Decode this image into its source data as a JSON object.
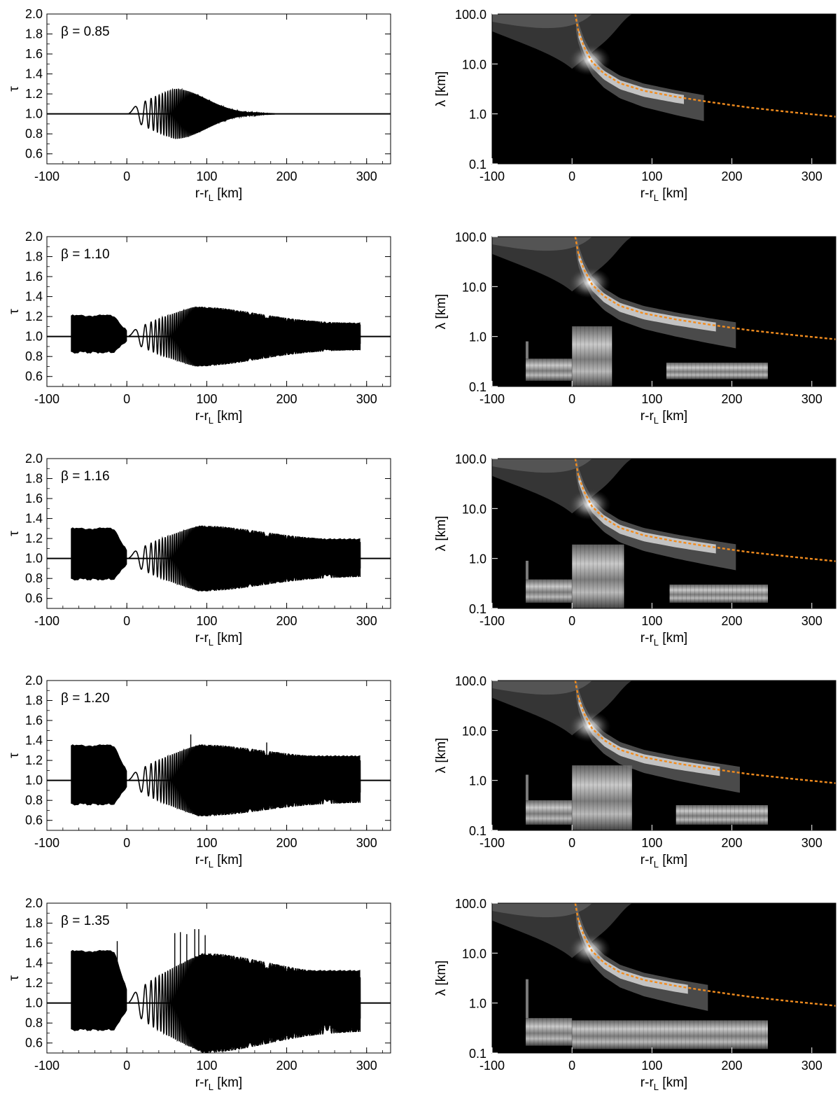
{
  "chart_data": [
    {
      "type": "line",
      "panel": "left",
      "beta_label": "β = 0.85",
      "ylabel": "τ",
      "xlabel": "r-r",
      "xlabel_sub": "L",
      "xlabel_unit": "[km]",
      "xlim": [
        -100,
        330
      ],
      "ylim": [
        0.5,
        2.0
      ],
      "xticks": [
        -100,
        0,
        100,
        200,
        300
      ],
      "xtick_labels": [
        "-100",
        "0",
        "100",
        "200",
        "300"
      ],
      "yticks": [
        0.6,
        0.8,
        1.0,
        1.2,
        1.4,
        1.6,
        1.8,
        2.0
      ],
      "ytick_labels": [
        "0.6",
        "0.8",
        "1.0",
        "1.2",
        "1.4",
        "1.6",
        "1.8",
        "2.0"
      ],
      "baseline": 1.0,
      "band": null,
      "wave": {
        "start": 0,
        "end": 185,
        "peak_x": 60,
        "peak_amp": 0.25,
        "post_amp": 0
      },
      "spikes": []
    },
    {
      "type": "heatmap",
      "panel": "right",
      "ylabel": "λ [km]",
      "xlabel": "r-r",
      "xlabel_sub": "L",
      "xlabel_unit": "[km]",
      "xlim": [
        -100,
        330
      ],
      "ylim": [
        0.1,
        100
      ],
      "yscale": "log",
      "xticks": [
        -100,
        0,
        100,
        200,
        300
      ],
      "xtick_labels": [
        "-100",
        "0",
        "100",
        "200",
        "300"
      ],
      "yticks": [
        0.1,
        1,
        10,
        100
      ],
      "ytick_labels": [
        "0.1",
        "1.0",
        "10.0",
        "100.0"
      ],
      "ridge_end": 165,
      "curve_color": "#f28c1e",
      "curve": {
        "x": [
          4,
          8,
          15,
          25,
          40,
          60,
          90,
          130,
          170,
          220,
          270,
          330
        ],
        "y": [
          100,
          45,
          22,
          11,
          6.4,
          4.1,
          2.9,
          2.2,
          1.75,
          1.35,
          1.1,
          0.88
        ]
      },
      "low_bands": []
    },
    {
      "type": "line",
      "panel": "left",
      "beta_label": "β = 1.10",
      "ylabel": "τ",
      "xlabel": "r-r",
      "xlabel_sub": "L",
      "xlabel_unit": "[km]",
      "xlim": [
        -100,
        330
      ],
      "ylim": [
        0.5,
        2.0
      ],
      "xticks": [
        -100,
        0,
        100,
        200,
        300
      ],
      "xtick_labels": [
        "-100",
        "0",
        "100",
        "200",
        "300"
      ],
      "yticks": [
        0.6,
        0.8,
        1.0,
        1.2,
        1.4,
        1.6,
        1.8,
        2.0
      ],
      "ytick_labels": [
        "0.6",
        "0.8",
        "1.0",
        "1.2",
        "1.4",
        "1.6",
        "1.8",
        "2.0"
      ],
      "baseline": 1.0,
      "band": {
        "x0": -70,
        "x1": 292,
        "split": 145,
        "pre_lo": 0.84,
        "pre_hi": 1.21,
        "post_lo": 0.87,
        "post_hi": 1.13
      },
      "wave": {
        "start": 0,
        "end": 292,
        "peak_x": 85,
        "peak_amp": 0.3,
        "post_amp": 0.13
      },
      "spikes": []
    },
    {
      "type": "heatmap",
      "panel": "right",
      "ylabel": "λ [km]",
      "xlabel": "r-r",
      "xlabel_sub": "L",
      "xlabel_unit": "[km]",
      "xlim": [
        -100,
        330
      ],
      "ylim": [
        0.1,
        100
      ],
      "yscale": "log",
      "xticks": [
        -100,
        0,
        100,
        200,
        300
      ],
      "xtick_labels": [
        "-100",
        "0",
        "100",
        "200",
        "300"
      ],
      "yticks": [
        0.1,
        1,
        10,
        100
      ],
      "ytick_labels": [
        "0.1",
        "1.0",
        "10.0",
        "100.0"
      ],
      "ridge_end": 205,
      "curve_color": "#f28c1e",
      "curve": {
        "x": [
          4,
          8,
          15,
          25,
          40,
          60,
          90,
          130,
          170,
          220,
          270,
          330
        ],
        "y": [
          100,
          45,
          22,
          11,
          6.4,
          4.1,
          2.9,
          2.2,
          1.75,
          1.35,
          1.1,
          0.88
        ]
      },
      "low_bands": [
        {
          "x0": -58,
          "x1": 0,
          "lam_lo": 0.13,
          "lam_hi": 0.36,
          "tail_top": 0.8
        },
        {
          "x0": 0,
          "x1": 50,
          "lam_lo": 0.1,
          "lam_hi": 1.6,
          "tail_top": null
        },
        {
          "x0": 118,
          "x1": 245,
          "lam_lo": 0.14,
          "lam_hi": 0.3,
          "tail_top": null
        }
      ]
    },
    {
      "type": "line",
      "panel": "left",
      "beta_label": "β = 1.16",
      "ylabel": "τ",
      "xlabel": "r-r",
      "xlabel_sub": "L",
      "xlabel_unit": "[km]",
      "xlim": [
        -100,
        330
      ],
      "ylim": [
        0.5,
        2.0
      ],
      "xticks": [
        -100,
        0,
        100,
        200,
        300
      ],
      "xtick_labels": [
        "-100",
        "0",
        "100",
        "200",
        "300"
      ],
      "yticks": [
        0.6,
        0.8,
        1.0,
        1.2,
        1.4,
        1.6,
        1.8,
        2.0
      ],
      "ytick_labels": [
        "0.6",
        "0.8",
        "1.0",
        "1.2",
        "1.4",
        "1.6",
        "1.8",
        "2.0"
      ],
      "baseline": 1.0,
      "band": {
        "x0": -70,
        "x1": 292,
        "split": 150,
        "pre_lo": 0.79,
        "pre_hi": 1.3,
        "post_lo": 0.84,
        "post_hi": 1.19
      },
      "wave": {
        "start": 0,
        "end": 292,
        "peak_x": 90,
        "peak_amp": 0.33,
        "post_amp": 0.18
      },
      "spikes": []
    },
    {
      "type": "heatmap",
      "panel": "right",
      "ylabel": "λ [km]",
      "xlabel": "r-r",
      "xlabel_sub": "L",
      "xlabel_unit": "[km]",
      "xlim": [
        -100,
        330
      ],
      "ylim": [
        0.1,
        100
      ],
      "yscale": "log",
      "xticks": [
        -100,
        0,
        100,
        200,
        300
      ],
      "xtick_labels": [
        "-100",
        "0",
        "100",
        "200",
        "300"
      ],
      "yticks": [
        0.1,
        1,
        10,
        100
      ],
      "ytick_labels": [
        "0.1",
        "1.0",
        "10.0",
        "100.0"
      ],
      "ridge_end": 205,
      "curve_color": "#f28c1e",
      "curve": {
        "x": [
          4,
          8,
          15,
          25,
          40,
          60,
          90,
          130,
          170,
          220,
          270,
          330
        ],
        "y": [
          100,
          45,
          22,
          11,
          6.4,
          4.1,
          2.9,
          2.2,
          1.75,
          1.35,
          1.1,
          0.88
        ]
      },
      "low_bands": [
        {
          "x0": -58,
          "x1": 0,
          "lam_lo": 0.13,
          "lam_hi": 0.38,
          "tail_top": 0.9
        },
        {
          "x0": 0,
          "x1": 65,
          "lam_lo": 0.1,
          "lam_hi": 1.9,
          "tail_top": null
        },
        {
          "x0": 122,
          "x1": 245,
          "lam_lo": 0.13,
          "lam_hi": 0.3,
          "tail_top": null
        }
      ]
    },
    {
      "type": "line",
      "panel": "left",
      "beta_label": "β = 1.20",
      "ylabel": "τ",
      "xlabel": "r-r",
      "xlabel_sub": "L",
      "xlabel_unit": "[km]",
      "xlim": [
        -100,
        330
      ],
      "ylim": [
        0.5,
        2.0
      ],
      "xticks": [
        -100,
        0,
        100,
        200,
        300
      ],
      "xtick_labels": [
        "-100",
        "0",
        "100",
        "200",
        "300"
      ],
      "yticks": [
        0.6,
        0.8,
        1.0,
        1.2,
        1.4,
        1.6,
        1.8,
        2.0
      ],
      "ytick_labels": [
        "0.6",
        "0.8",
        "1.0",
        "1.2",
        "1.4",
        "1.6",
        "1.8",
        "2.0"
      ],
      "baseline": 1.0,
      "band": {
        "x0": -70,
        "x1": 292,
        "split": 175,
        "pre_lo": 0.76,
        "pre_hi": 1.35,
        "post_lo": 0.81,
        "post_hi": 1.24
      },
      "wave": {
        "start": 0,
        "end": 292,
        "peak_x": 90,
        "peak_amp": 0.36,
        "post_amp": 0.22
      },
      "spikes": [
        {
          "x": 80,
          "y": 1.46
        },
        {
          "x": 76,
          "y": 0.72
        },
        {
          "x": 175,
          "y": 1.38
        }
      ]
    },
    {
      "type": "heatmap",
      "panel": "right",
      "ylabel": "λ [km]",
      "xlabel": "r-r",
      "xlabel_sub": "L",
      "xlabel_unit": "[km]",
      "xlim": [
        -100,
        330
      ],
      "ylim": [
        0.1,
        100
      ],
      "yscale": "log",
      "xticks": [
        -100,
        0,
        100,
        200,
        300
      ],
      "xtick_labels": [
        "-100",
        "0",
        "100",
        "200",
        "300"
      ],
      "yticks": [
        0.1,
        1,
        10,
        100
      ],
      "ytick_labels": [
        "0.1",
        "1.0",
        "10.0",
        "100.0"
      ],
      "ridge_end": 210,
      "curve_color": "#f28c1e",
      "curve": {
        "x": [
          4,
          8,
          15,
          25,
          40,
          60,
          90,
          130,
          170,
          220,
          270,
          330
        ],
        "y": [
          100,
          45,
          22,
          11,
          6.4,
          4.1,
          2.9,
          2.2,
          1.75,
          1.35,
          1.1,
          0.88
        ]
      },
      "low_bands": [
        {
          "x0": -58,
          "x1": 0,
          "lam_lo": 0.13,
          "lam_hi": 0.4,
          "tail_top": 1.3
        },
        {
          "x0": 0,
          "x1": 75,
          "lam_lo": 0.1,
          "lam_hi": 2.0,
          "tail_top": null
        },
        {
          "x0": 130,
          "x1": 245,
          "lam_lo": 0.13,
          "lam_hi": 0.32,
          "tail_top": null
        }
      ]
    },
    {
      "type": "line",
      "panel": "left",
      "beta_label": "β = 1.35",
      "ylabel": "τ",
      "xlabel": "r-r",
      "xlabel_sub": "L",
      "xlabel_unit": "[km]",
      "xlim": [
        -100,
        330
      ],
      "ylim": [
        0.5,
        2.0
      ],
      "xticks": [
        -100,
        0,
        100,
        200,
        300
      ],
      "xtick_labels": [
        "-100",
        "0",
        "100",
        "200",
        "300"
      ],
      "yticks": [
        0.6,
        0.8,
        1.0,
        1.2,
        1.4,
        1.6,
        1.8,
        2.0
      ],
      "ytick_labels": [
        "0.6",
        "0.8",
        "1.0",
        "1.2",
        "1.4",
        "1.6",
        "1.8",
        "2.0"
      ],
      "baseline": 1.0,
      "band": {
        "x0": -70,
        "x1": 292,
        "split": 150,
        "pre_lo": 0.73,
        "pre_hi": 1.52,
        "post_lo": 0.78,
        "post_hi": 1.32
      },
      "wave": {
        "start": 0,
        "end": 292,
        "peak_x": 95,
        "peak_amp": 0.5,
        "post_amp": 0.28
      },
      "spikes": [
        {
          "x": 60,
          "y": 1.7
        },
        {
          "x": 67,
          "y": 1.71
        },
        {
          "x": 75,
          "y": 1.69
        },
        {
          "x": 85,
          "y": 1.74
        },
        {
          "x": 90,
          "y": 1.74
        },
        {
          "x": 98,
          "y": 1.68
        },
        {
          "x": -12,
          "y": 1.62
        },
        {
          "x": 93,
          "y": 0.63
        }
      ]
    },
    {
      "type": "heatmap",
      "panel": "right",
      "ylabel": "λ [km]",
      "xlabel": "r-r",
      "xlabel_sub": "L",
      "xlabel_unit": "[km]",
      "xlim": [
        -100,
        330
      ],
      "ylim": [
        0.1,
        100
      ],
      "yscale": "log",
      "xticks": [
        -100,
        0,
        100,
        200,
        300
      ],
      "xtick_labels": [
        "-100",
        "0",
        "100",
        "200",
        "300"
      ],
      "yticks": [
        0.1,
        1,
        10,
        100
      ],
      "ytick_labels": [
        "0.1",
        "1.0",
        "10.0",
        "100.0"
      ],
      "ridge_end": 170,
      "curve_color": "#f28c1e",
      "curve": {
        "x": [
          4,
          8,
          15,
          25,
          40,
          60,
          90,
          130,
          170,
          220,
          270,
          330
        ],
        "y": [
          100,
          45,
          22,
          11,
          6.4,
          4.1,
          2.9,
          2.2,
          1.75,
          1.35,
          1.1,
          0.88
        ]
      },
      "low_bands": [
        {
          "x0": -58,
          "x1": 0,
          "lam_lo": 0.14,
          "lam_hi": 0.5,
          "tail_top": 3.0
        },
        {
          "x0": 0,
          "x1": 245,
          "lam_lo": 0.12,
          "lam_hi": 0.45,
          "tail_top": null
        }
      ]
    }
  ]
}
